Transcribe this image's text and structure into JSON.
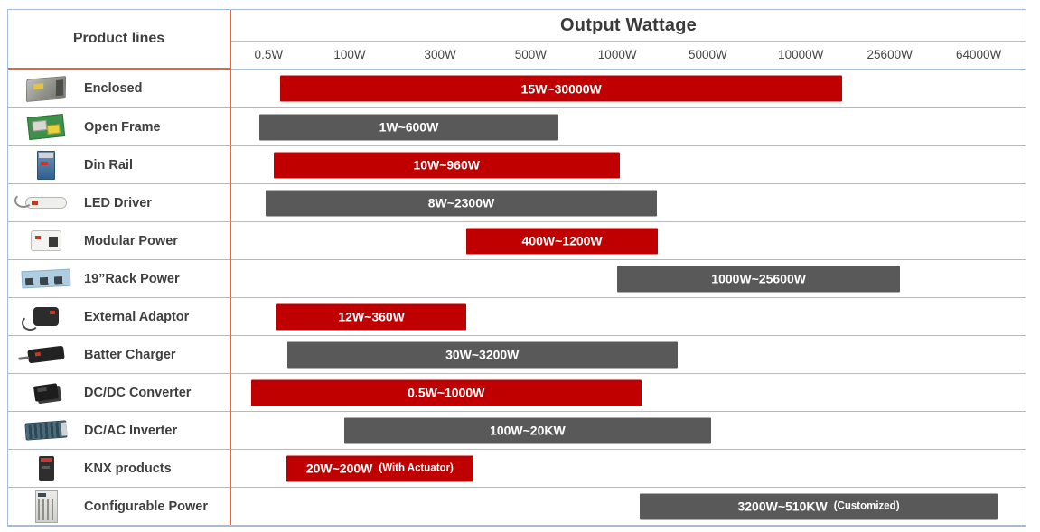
{
  "header": {
    "product_lines_label": "Product lines",
    "output_wattage_label": "Output Wattage"
  },
  "colors": {
    "bar_red": "#c00000",
    "bar_gray": "#595959",
    "grid_border_blue": "#a5badf",
    "divider_orange": "#e8643a",
    "heading_text": "#3f3f3f",
    "bar_text": "#ffffff"
  },
  "chart_data": {
    "type": "bar",
    "orientation": "horizontal",
    "title": "Output Wattage",
    "xlabel": "Output Wattage",
    "ylabel": "Product lines",
    "x_axis_ticks": [
      {
        "label": "0.5W",
        "pos_pct": 4.7
      },
      {
        "label": "100W",
        "pos_pct": 14.9
      },
      {
        "label": "300W",
        "pos_pct": 26.3
      },
      {
        "label": "500W",
        "pos_pct": 37.7
      },
      {
        "label": "1000W",
        "pos_pct": 48.6
      },
      {
        "label": "5000W",
        "pos_pct": 60.0
      },
      {
        "label": "10000W",
        "pos_pct": 71.7
      },
      {
        "label": "25600W",
        "pos_pct": 82.9
      },
      {
        "label": "64000W",
        "pos_pct": 94.1
      }
    ],
    "rows": [
      {
        "product": "Enclosed",
        "icon": "enclosed-psu",
        "color": "red",
        "range_label": "15W~30000W",
        "note": "",
        "range_min_w": 15,
        "range_max_w": 30000,
        "bar_left_pct": 6.2,
        "bar_width_pct": 70.7
      },
      {
        "product": "Open Frame",
        "icon": "open-frame-psu",
        "color": "gray",
        "range_label": "1W~600W",
        "note": "",
        "range_min_w": 1,
        "range_max_w": 600,
        "bar_left_pct": 3.5,
        "bar_width_pct": 37.7
      },
      {
        "product": "Din Rail",
        "icon": "din-rail-psu",
        "color": "red",
        "range_label": "10W~960W",
        "note": "",
        "range_min_w": 10,
        "range_max_w": 960,
        "bar_left_pct": 5.3,
        "bar_width_pct": 43.6
      },
      {
        "product": "LED Driver",
        "icon": "led-driver",
        "color": "gray",
        "range_label": "8W~2300W",
        "note": "",
        "range_min_w": 8,
        "range_max_w": 2300,
        "bar_left_pct": 4.3,
        "bar_width_pct": 49.3
      },
      {
        "product": "Modular Power",
        "icon": "modular-power",
        "color": "red",
        "range_label": "400W~1200W",
        "note": "",
        "range_min_w": 400,
        "range_max_w": 1200,
        "bar_left_pct": 29.6,
        "bar_width_pct": 24.1
      },
      {
        "product": "19”Rack Power",
        "icon": "rack-power",
        "color": "gray",
        "range_label": "1000W~25600W",
        "note": "",
        "range_min_w": 1000,
        "range_max_w": 25600,
        "bar_left_pct": 48.6,
        "bar_width_pct": 35.6
      },
      {
        "product": "External Adaptor",
        "icon": "external-adaptor",
        "color": "red",
        "range_label": "12W~360W",
        "note": "",
        "range_min_w": 12,
        "range_max_w": 360,
        "bar_left_pct": 5.7,
        "bar_width_pct": 23.9
      },
      {
        "product": "Batter Charger",
        "icon": "battery-charger",
        "color": "gray",
        "range_label": "30W~3200W",
        "note": "",
        "range_min_w": 30,
        "range_max_w": 3200,
        "bar_left_pct": 7.0,
        "bar_width_pct": 49.2
      },
      {
        "product": "DC/DC Converter",
        "icon": "dcdc-converter",
        "color": "red",
        "range_label": "0.5W~1000W",
        "note": "",
        "range_min_w": 0.5,
        "range_max_w": 1000,
        "bar_left_pct": 2.5,
        "bar_width_pct": 49.1
      },
      {
        "product": "DC/AC Inverter",
        "icon": "dcac-inverter",
        "color": "gray",
        "range_label": "100W~20KW",
        "note": "",
        "range_min_w": 100,
        "range_max_w": 20000,
        "bar_left_pct": 14.2,
        "bar_width_pct": 46.2
      },
      {
        "product": "KNX products",
        "icon": "knx-module",
        "color": "red",
        "range_label": "20W~200W",
        "note": "(With Actuator)",
        "range_min_w": 20,
        "range_max_w": 200,
        "bar_left_pct": 6.9,
        "bar_width_pct": 23.6
      },
      {
        "product": "Configurable Power",
        "icon": "configurable-power",
        "color": "gray",
        "range_label": "3200W~510KW",
        "note": "(Customized)",
        "range_min_w": 3200,
        "range_max_w": 510000,
        "bar_left_pct": 51.4,
        "bar_width_pct": 45.1
      }
    ]
  }
}
